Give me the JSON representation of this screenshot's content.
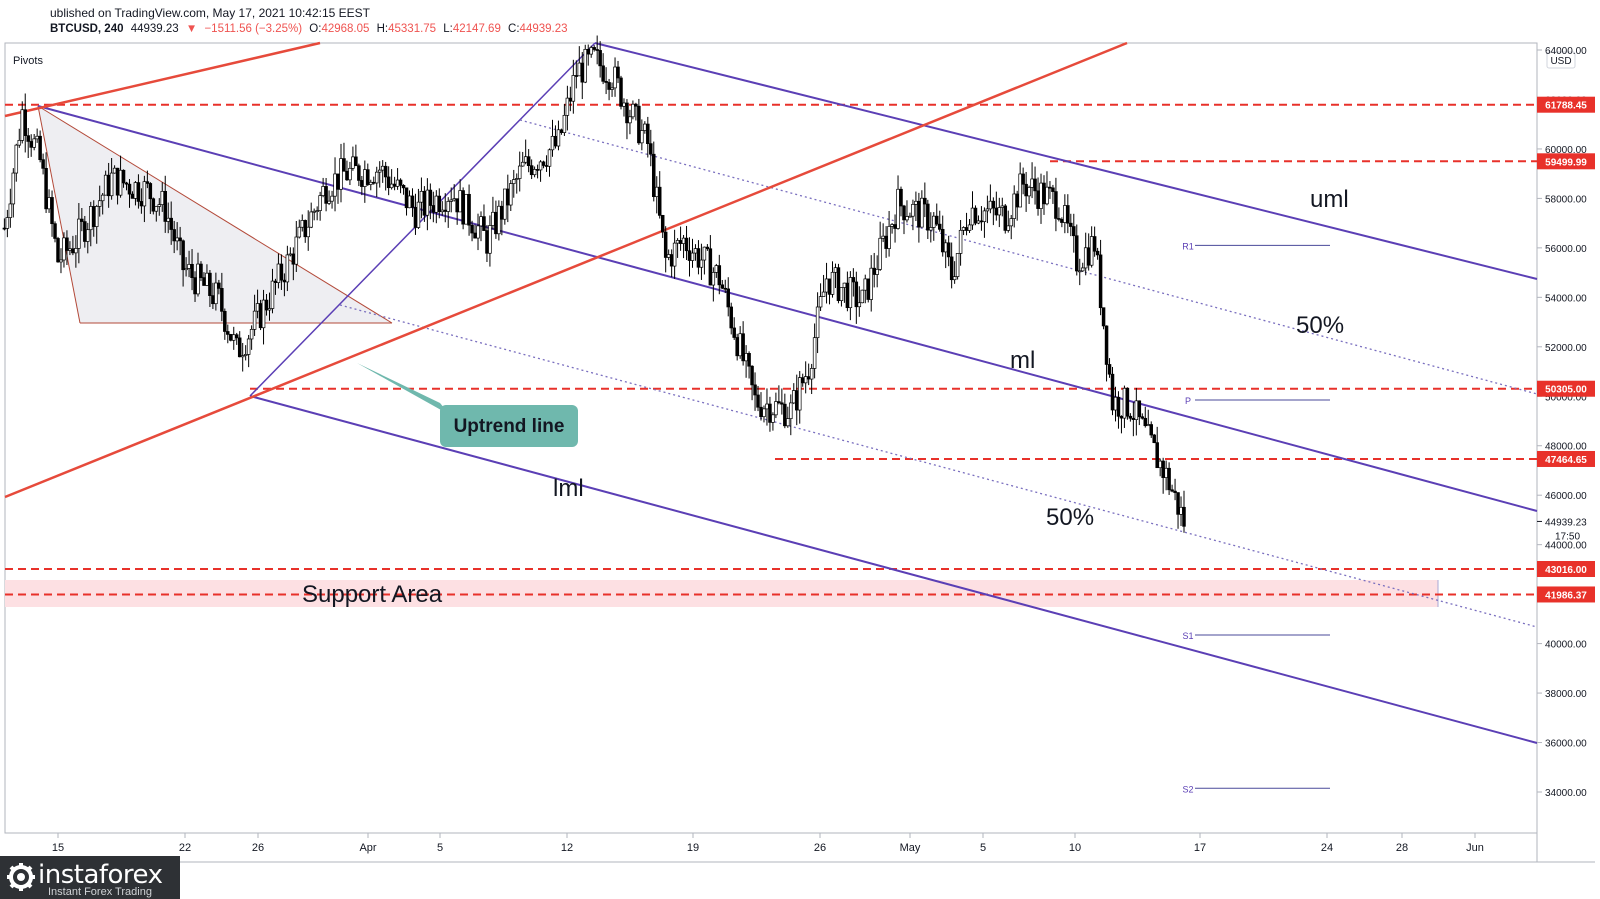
{
  "header": {
    "published": "ublished on TradingView.com, May 17, 2021 10:42:15 EEST",
    "symbol": "BTCUSD, 240",
    "last": "44939.23",
    "change": "−1511.56 (−3.25%)",
    "open_label": "O:",
    "open": "42968.05",
    "high_label": "H:",
    "high": "45331.75",
    "low_label": "L:",
    "low": "42147.69",
    "close_label": "C:",
    "close": "44939.23"
  },
  "indicator_label": "Pivots",
  "currency": "USD",
  "annotations": {
    "uml": "uml",
    "ml": "ml",
    "lml": "lml",
    "fifty_upper": "50%",
    "fifty_lower": "50%",
    "uptrend_line": "Uptrend line",
    "support_area": "Support Area",
    "pivot_r1": "R1",
    "pivot_p": "P",
    "pivot_s1": "S1",
    "pivot_s2": "S2"
  },
  "logo": {
    "name": "instaforex",
    "tagline": "Instant Forex Trading"
  },
  "colors": {
    "red_level": "#e8312a",
    "channel": "#5b3fb5",
    "uptrend": "#e64a3b",
    "callout": "#6fb8ad",
    "support_fill": "#fde0e3"
  },
  "chart_data": {
    "type": "candlestick",
    "symbol": "BTCUSD",
    "timeframe": "240",
    "y_ticks": [
      34000,
      36000,
      38000,
      40000,
      42000,
      44000,
      46000,
      48000,
      50000,
      52000,
      54000,
      56000,
      58000,
      60000,
      62000,
      64000
    ],
    "y_tick_labels": [
      "34000.00",
      "36000.00",
      "38000.00",
      "40000.00",
      "42000.00",
      "44000.00",
      "46000.00",
      "48000.00",
      "50000.00",
      "52000.00",
      "54000.00",
      "56000.00",
      "58000.00",
      "60000.00",
      "62000.00",
      "64000.00"
    ],
    "x_ticks": [
      "15",
      "22",
      "26",
      "Apr",
      "5",
      "12",
      "19",
      "26",
      "May",
      "5",
      "10",
      "17",
      "24",
      "28",
      "Jun"
    ],
    "price_levels": [
      {
        "label": "61788.45",
        "value": 61788.45
      },
      {
        "label": "59499.99",
        "value": 59499.99
      },
      {
        "label": "50305.00",
        "value": 50305.0
      },
      {
        "label": "47464.65",
        "value": 47464.65
      },
      {
        "label": "43016.00",
        "value": 43016.0
      },
      {
        "label": "41986.37",
        "value": 41986.37
      }
    ],
    "current_price": {
      "label": "44939.23",
      "value": 44939.23,
      "countdown": "17:50"
    },
    "pivots": [
      {
        "name": "R1",
        "value": 56100
      },
      {
        "name": "P",
        "value": 49850
      },
      {
        "name": "S1",
        "value": 40350
      },
      {
        "name": "S2",
        "value": 34150
      }
    ],
    "support_area": {
      "top": 43016.0,
      "bottom": 41986.37
    },
    "close_path": [
      [
        "Mar 12",
        56800
      ],
      [
        "Mar 13",
        61500
      ],
      [
        "Mar 14",
        59500
      ],
      [
        "Mar 15",
        55500
      ],
      [
        "Mar 16",
        56300
      ],
      [
        "Mar 18",
        58800
      ],
      [
        "Mar 20",
        58300
      ],
      [
        "Mar 21",
        57600
      ],
      [
        "Mar 22",
        55200
      ],
      [
        "Mar 24",
        53900
      ],
      [
        "Mar 25",
        51800
      ],
      [
        "Mar 26",
        52900
      ],
      [
        "Mar 28",
        55600
      ],
      [
        "Mar 30",
        58500
      ],
      [
        "Mar 31",
        59000
      ],
      [
        "Apr 2",
        59200
      ],
      [
        "Apr 4",
        57500
      ],
      [
        "Apr 6",
        58300
      ],
      [
        "Apr 8",
        56300
      ],
      [
        "Apr 10",
        59200
      ],
      [
        "Apr 12",
        60200
      ],
      [
        "Apr 13",
        63100
      ],
      [
        "Apr 14",
        63600
      ],
      [
        "Apr 15",
        63000
      ],
      [
        "Apr 16",
        61500
      ],
      [
        "Apr 17",
        60200
      ],
      [
        "Apr 18",
        55500
      ],
      [
        "Apr 19",
        56300
      ],
      [
        "Apr 21",
        54800
      ],
      [
        "Apr 22",
        52300
      ],
      [
        "Apr 23",
        49800
      ],
      [
        "Apr 25",
        49400
      ],
      [
        "Apr 26",
        51200
      ],
      [
        "Apr 27",
        54800
      ],
      [
        "Apr 29",
        53800
      ],
      [
        "May 1",
        57800
      ],
      [
        "May 3",
        57100
      ],
      [
        "May 4",
        54900
      ],
      [
        "May 5",
        57600
      ],
      [
        "May 7",
        57300
      ],
      [
        "May 8",
        58600
      ],
      [
        "May 10",
        57800
      ],
      [
        "May 11",
        55500
      ],
      [
        "May 12",
        56200
      ],
      [
        "May 13",
        49800
      ],
      [
        "May 14",
        49600
      ],
      [
        "May 15",
        48200
      ],
      [
        "May 16",
        46800
      ],
      [
        "May 17",
        44939.23
      ]
    ]
  }
}
